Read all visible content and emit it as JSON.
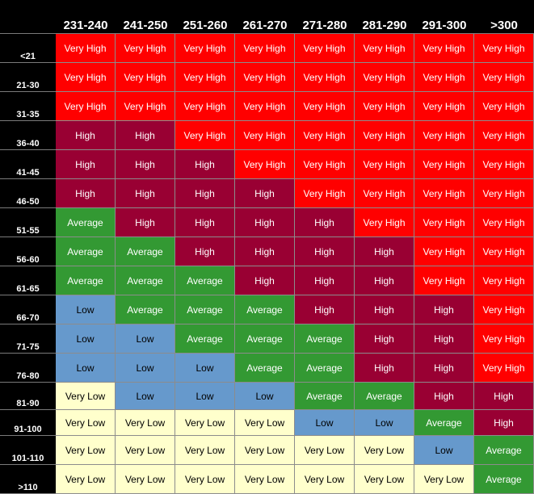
{
  "columns": [
    "231-240",
    "241-250",
    "251-260",
    "261-270",
    "271-280",
    "281-290",
    "291-300",
    ">300"
  ],
  "rows": [
    {
      "label": "<21",
      "cells": [
        "Very High",
        "Very High",
        "Very High",
        "Very High",
        "Very High",
        "Very High",
        "Very High",
        "Very High"
      ]
    },
    {
      "label": "21-30",
      "cells": [
        "Very High",
        "Very High",
        "Very High",
        "Very High",
        "Very High",
        "Very High",
        "Very High",
        "Very High"
      ]
    },
    {
      "label": "31-35",
      "cells": [
        "Very High",
        "Very High",
        "Very High",
        "Very High",
        "Very High",
        "Very High",
        "Very High",
        "Very High"
      ]
    },
    {
      "label": "36-40",
      "cells": [
        "High",
        "High",
        "Very High",
        "Very High",
        "Very High",
        "Very High",
        "Very High",
        "Very High"
      ]
    },
    {
      "label": "41-45",
      "cells": [
        "High",
        "High",
        "High",
        "Very High",
        "Very High",
        "Very High",
        "Very High",
        "Very High"
      ]
    },
    {
      "label": "46-50",
      "cells": [
        "High",
        "High",
        "High",
        "High",
        "Very High",
        "Very High",
        "Very High",
        "Very High"
      ]
    },
    {
      "label": "51-55",
      "cells": [
        "Average",
        "High",
        "High",
        "High",
        "High",
        "Very High",
        "Very High",
        "Very High"
      ]
    },
    {
      "label": "56-60",
      "cells": [
        "Average",
        "Average",
        "High",
        "High",
        "High",
        "High",
        "Very High",
        "Very High"
      ]
    },
    {
      "label": "61-65",
      "cells": [
        "Average",
        "Average",
        "Average",
        "High",
        "High",
        "High",
        "Very High",
        "Very High"
      ]
    },
    {
      "label": "66-70",
      "cells": [
        "Low",
        "Average",
        "Average",
        "Average",
        "High",
        "High",
        "High",
        "Very High"
      ]
    },
    {
      "label": "71-75",
      "cells": [
        "Low",
        "Low",
        "Average",
        "Average",
        "Average",
        "High",
        "High",
        "Very High"
      ]
    },
    {
      "label": "76-80",
      "cells": [
        "Low",
        "Low",
        "Low",
        "Average",
        "Average",
        "High",
        "High",
        "Very High"
      ]
    },
    {
      "label": "81-90",
      "cells": [
        "Very Low",
        "Low",
        "Low",
        "Low",
        "Average",
        "Average",
        "High",
        "High"
      ]
    },
    {
      "label": "91-100",
      "cells": [
        "Very Low",
        "Very Low",
        "Very Low",
        "Very Low",
        "Low",
        "Low",
        "Average",
        "High"
      ]
    },
    {
      "label": "101-110",
      "cells": [
        "Very Low",
        "Very Low",
        "Very Low",
        "Very Low",
        "Very Low",
        "Very Low",
        "Low",
        "Average"
      ]
    },
    {
      "label": ">110",
      "cells": [
        "Very Low",
        "Very Low",
        "Very Low",
        "Very Low",
        "Very Low",
        "Very Low",
        "Very Low",
        "Average"
      ]
    }
  ],
  "colors": {
    "Very High": {
      "bg": "#ff0000",
      "fg": "#ffffff"
    },
    "High": {
      "bg": "#990033",
      "fg": "#ffffff"
    },
    "Average": {
      "bg": "#339933",
      "fg": "#ffffff"
    },
    "Low": {
      "bg": "#6699cc",
      "fg": "#000000"
    },
    "Very Low": {
      "bg": "#ffffcc",
      "fg": "#000000"
    }
  }
}
